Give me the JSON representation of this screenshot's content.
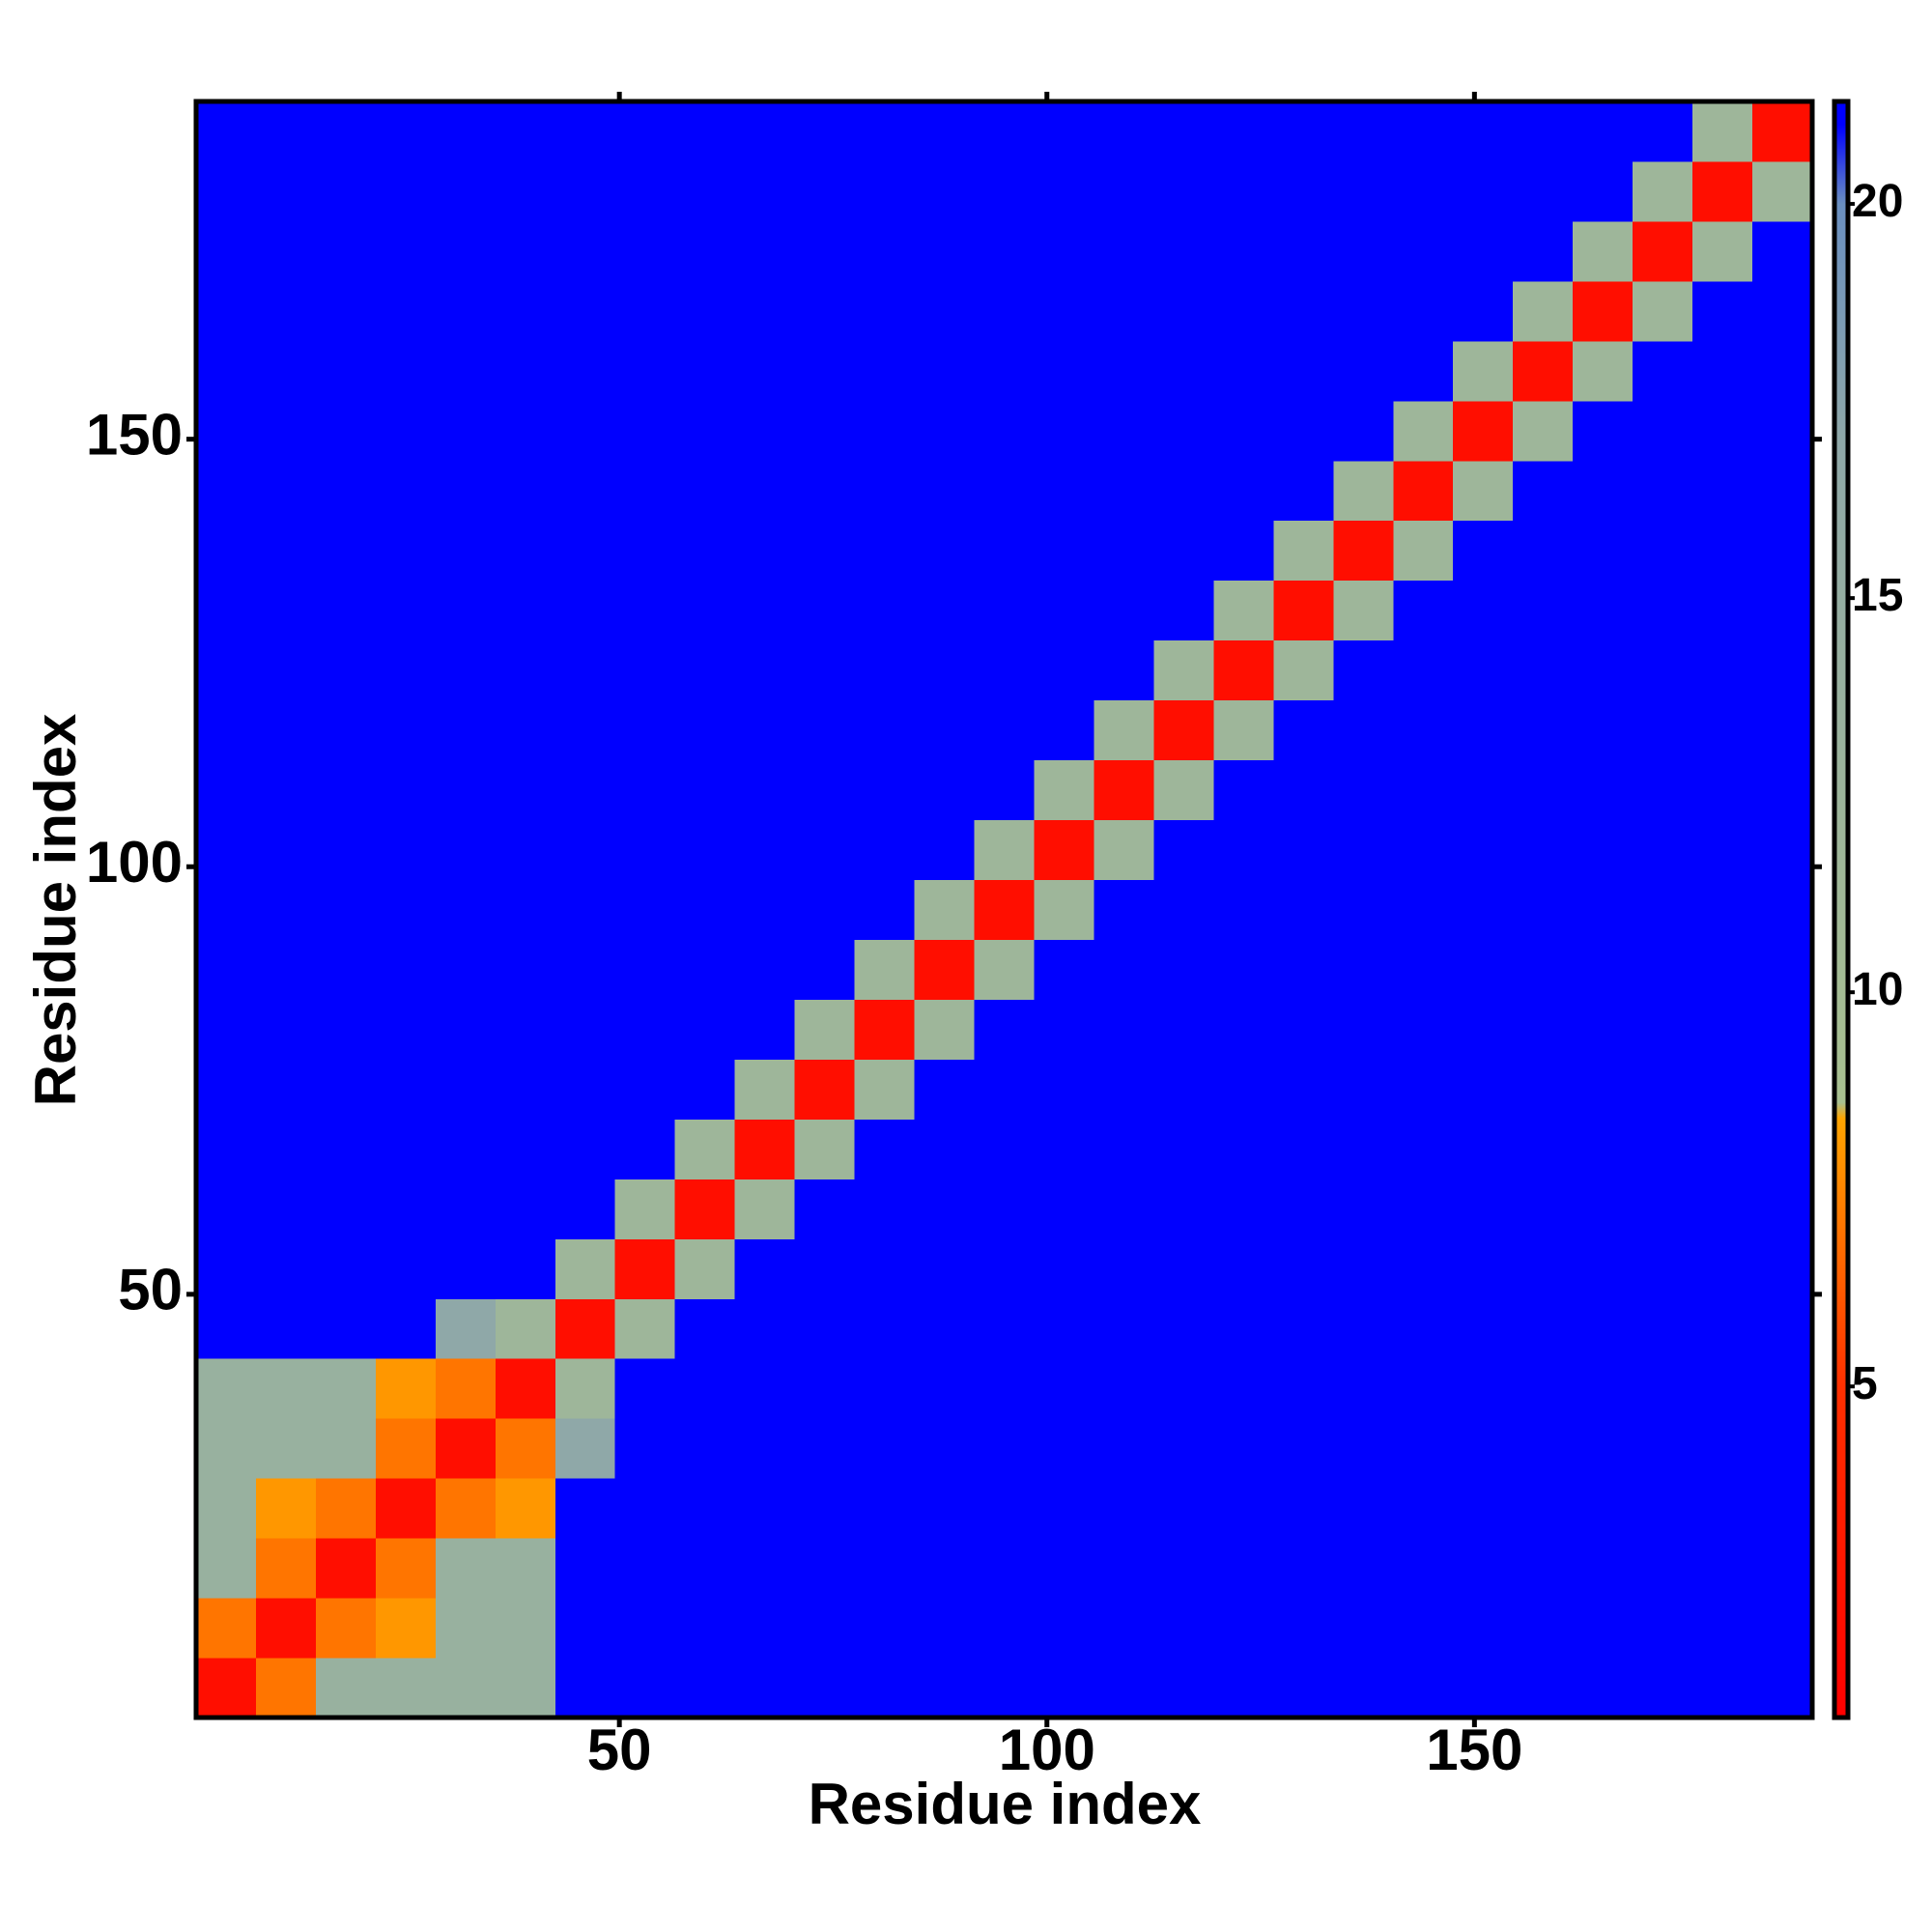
{
  "chart_data": {
    "type": "heatmap",
    "x_label": "Residue index",
    "y_label": "Residue index",
    "xlim": [
      0.5,
      189.5
    ],
    "ylim": [
      0.5,
      189.5
    ],
    "xticks": [
      50,
      100,
      150
    ],
    "yticks": [
      50,
      100,
      150
    ],
    "x_bins": [
      0.5,
      7.5,
      14.5,
      21.5,
      28.5,
      35.5,
      42.5,
      49.5,
      56.5,
      63.5,
      70.5,
      77.5,
      84.5,
      91.5,
      98.5,
      105.5,
      112.5,
      119.5,
      126.5,
      133.5,
      140.5,
      147.5,
      154.5,
      161.5,
      168.5,
      175.5,
      182.5,
      189.5
    ],
    "y_bins": [
      0.5,
      7.5,
      14.5,
      21.5,
      28.5,
      35.5,
      42.5,
      49.5,
      56.5,
      63.5,
      70.5,
      77.5,
      84.5,
      91.5,
      98.5,
      105.5,
      112.5,
      119.5,
      126.5,
      133.5,
      140.5,
      147.5,
      154.5,
      161.5,
      168.5,
      175.5,
      182.5,
      189.5
    ],
    "z": [
      [
        2,
        7,
        14,
        14,
        14,
        14,
        21,
        21,
        21,
        21,
        21,
        21,
        21,
        21,
        21,
        21,
        21,
        21,
        21,
        21,
        21,
        21,
        21,
        21,
        21,
        21,
        21
      ],
      [
        7,
        2,
        7,
        8,
        14,
        14,
        21,
        21,
        21,
        21,
        21,
        21,
        21,
        21,
        21,
        21,
        21,
        21,
        21,
        21,
        21,
        21,
        21,
        21,
        21,
        21,
        21
      ],
      [
        14,
        7,
        2,
        7,
        14,
        14,
        21,
        21,
        21,
        21,
        21,
        21,
        21,
        21,
        21,
        21,
        21,
        21,
        21,
        21,
        21,
        21,
        21,
        21,
        21,
        21,
        21
      ],
      [
        14,
        8,
        7,
        2,
        7,
        8,
        21,
        21,
        21,
        21,
        21,
        21,
        21,
        21,
        21,
        21,
        21,
        21,
        21,
        21,
        21,
        21,
        21,
        21,
        21,
        21,
        21
      ],
      [
        14,
        14,
        14,
        7,
        2,
        7,
        17,
        21,
        21,
        21,
        21,
        21,
        21,
        21,
        21,
        21,
        21,
        21,
        21,
        21,
        21,
        21,
        21,
        21,
        21,
        21,
        21
      ],
      [
        14,
        14,
        14,
        8,
        7,
        2,
        12,
        21,
        21,
        21,
        21,
        21,
        21,
        21,
        21,
        21,
        21,
        21,
        21,
        21,
        21,
        21,
        21,
        21,
        21,
        21,
        21
      ],
      [
        21,
        21,
        21,
        21,
        17,
        12,
        2,
        12,
        21,
        21,
        21,
        21,
        21,
        21,
        21,
        21,
        21,
        21,
        21,
        21,
        21,
        21,
        21,
        21,
        21,
        21,
        21
      ],
      [
        21,
        21,
        21,
        21,
        21,
        21,
        12,
        2,
        12,
        21,
        21,
        21,
        21,
        21,
        21,
        21,
        21,
        21,
        21,
        21,
        21,
        21,
        21,
        21,
        21,
        21,
        21
      ],
      [
        21,
        21,
        21,
        21,
        21,
        21,
        21,
        12,
        2,
        12,
        21,
        21,
        21,
        21,
        21,
        21,
        21,
        21,
        21,
        21,
        21,
        21,
        21,
        21,
        21,
        21,
        21
      ],
      [
        21,
        21,
        21,
        21,
        21,
        21,
        21,
        21,
        12,
        2,
        12,
        21,
        21,
        21,
        21,
        21,
        21,
        21,
        21,
        21,
        21,
        21,
        21,
        21,
        21,
        21,
        21
      ],
      [
        21,
        21,
        21,
        21,
        21,
        21,
        21,
        21,
        21,
        12,
        2,
        12,
        21,
        21,
        21,
        21,
        21,
        21,
        21,
        21,
        21,
        21,
        21,
        21,
        21,
        21,
        21
      ],
      [
        21,
        21,
        21,
        21,
        21,
        21,
        21,
        21,
        21,
        21,
        12,
        2,
        12,
        21,
        21,
        21,
        21,
        21,
        21,
        21,
        21,
        21,
        21,
        21,
        21,
        21,
        21
      ],
      [
        21,
        21,
        21,
        21,
        21,
        21,
        21,
        21,
        21,
        21,
        21,
        12,
        2,
        12,
        21,
        21,
        21,
        21,
        21,
        21,
        21,
        21,
        21,
        21,
        21,
        21,
        21
      ],
      [
        21,
        21,
        21,
        21,
        21,
        21,
        21,
        21,
        21,
        21,
        21,
        21,
        12,
        2,
        12,
        21,
        21,
        21,
        21,
        21,
        21,
        21,
        21,
        21,
        21,
        21,
        21
      ],
      [
        21,
        21,
        21,
        21,
        21,
        21,
        21,
        21,
        21,
        21,
        21,
        21,
        21,
        12,
        2,
        12,
        21,
        21,
        21,
        21,
        21,
        21,
        21,
        21,
        21,
        21,
        21
      ],
      [
        21,
        21,
        21,
        21,
        21,
        21,
        21,
        21,
        21,
        21,
        21,
        21,
        21,
        21,
        12,
        2,
        12,
        21,
        21,
        21,
        21,
        21,
        21,
        21,
        21,
        21,
        21
      ],
      [
        21,
        21,
        21,
        21,
        21,
        21,
        21,
        21,
        21,
        21,
        21,
        21,
        21,
        21,
        21,
        12,
        2,
        12,
        21,
        21,
        21,
        21,
        21,
        21,
        21,
        21,
        21
      ],
      [
        21,
        21,
        21,
        21,
        21,
        21,
        21,
        21,
        21,
        21,
        21,
        21,
        21,
        21,
        21,
        21,
        12,
        2,
        12,
        21,
        21,
        21,
        21,
        21,
        21,
        21,
        21
      ],
      [
        21,
        21,
        21,
        21,
        21,
        21,
        21,
        21,
        21,
        21,
        21,
        21,
        21,
        21,
        21,
        21,
        21,
        12,
        2,
        12,
        21,
        21,
        21,
        21,
        21,
        21,
        21
      ],
      [
        21,
        21,
        21,
        21,
        21,
        21,
        21,
        21,
        21,
        21,
        21,
        21,
        21,
        21,
        21,
        21,
        21,
        21,
        12,
        2,
        12,
        21,
        21,
        21,
        21,
        21,
        21
      ],
      [
        21,
        21,
        21,
        21,
        21,
        21,
        21,
        21,
        21,
        21,
        21,
        21,
        21,
        21,
        21,
        21,
        21,
        21,
        21,
        12,
        2,
        12,
        21,
        21,
        21,
        21,
        21
      ],
      [
        21,
        21,
        21,
        21,
        21,
        21,
        21,
        21,
        21,
        21,
        21,
        21,
        21,
        21,
        21,
        21,
        21,
        21,
        21,
        21,
        12,
        2,
        12,
        21,
        21,
        21,
        21
      ],
      [
        21,
        21,
        21,
        21,
        21,
        21,
        21,
        21,
        21,
        21,
        21,
        21,
        21,
        21,
        21,
        21,
        21,
        21,
        21,
        21,
        21,
        12,
        2,
        12,
        21,
        21,
        21
      ],
      [
        21,
        21,
        21,
        21,
        21,
        21,
        21,
        21,
        21,
        21,
        21,
        21,
        21,
        21,
        21,
        21,
        21,
        21,
        21,
        21,
        21,
        21,
        12,
        2,
        12,
        21,
        21
      ],
      [
        21,
        21,
        21,
        21,
        21,
        21,
        21,
        21,
        21,
        21,
        21,
        21,
        21,
        21,
        21,
        21,
        21,
        21,
        21,
        21,
        21,
        21,
        21,
        12,
        2,
        12,
        21
      ],
      [
        21,
        21,
        21,
        21,
        21,
        21,
        21,
        21,
        21,
        21,
        21,
        21,
        21,
        21,
        21,
        21,
        21,
        21,
        21,
        21,
        21,
        21,
        21,
        21,
        12,
        2,
        12
      ],
      [
        21,
        21,
        21,
        21,
        21,
        21,
        21,
        21,
        21,
        21,
        21,
        21,
        21,
        21,
        21,
        21,
        21,
        21,
        21,
        21,
        21,
        21,
        21,
        21,
        21,
        12,
        2
      ]
    ],
    "zlim": [
      0.8,
      21.3
    ],
    "zticks": [
      5,
      10,
      15,
      20
    ],
    "colorscale": [
      [
        0.8,
        "#ff0000"
      ],
      [
        5,
        "#ff3000"
      ],
      [
        8.4,
        "#ffa500"
      ],
      [
        8.6,
        "#a8c090"
      ],
      [
        17,
        "#8fa8a8"
      ],
      [
        20,
        "#6a8fc0"
      ],
      [
        21,
        "#0000ff"
      ]
    ]
  }
}
